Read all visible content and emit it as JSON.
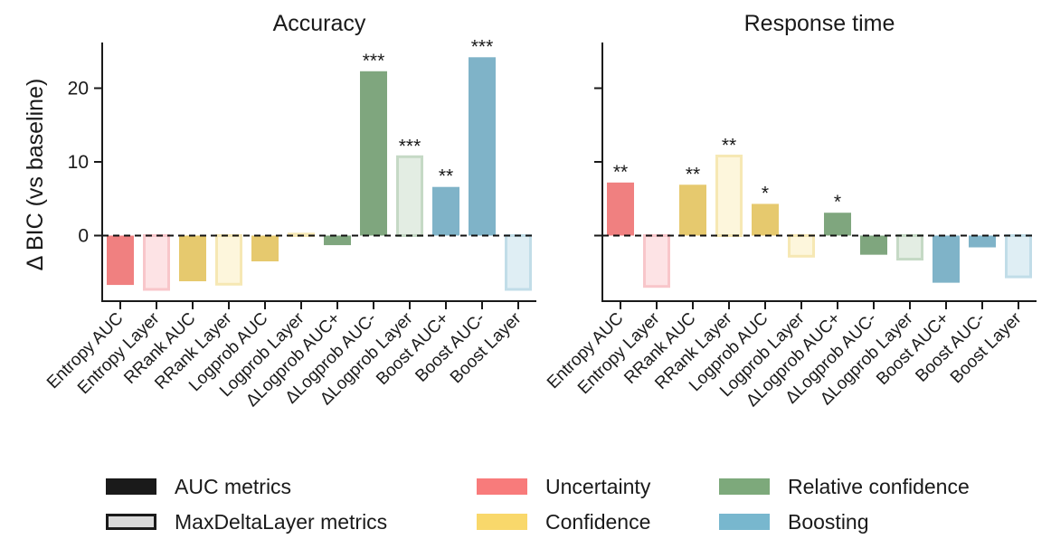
{
  "chart_data": [
    {
      "type": "bar",
      "title": "Accuracy",
      "ylabel": "Δ BIC (vs baseline)",
      "ylim": [
        -8.9,
        26.2
      ],
      "yticks": [
        0,
        10,
        20
      ],
      "categories": [
        "Entropy AUC",
        "Entropy Layer",
        "RRank AUC",
        "RRank Layer",
        "Logprob AUC",
        "Logprob Layer",
        "ΔLogprob AUC+",
        "ΔLogprob AUC-",
        "ΔLogprob Layer",
        "Boost AUC+",
        "Boost AUC-",
        "Boost Layer"
      ],
      "groups": [
        "uncertainty",
        "uncertainty",
        "confidence",
        "confidence",
        "confidence",
        "confidence",
        "relative",
        "relative",
        "relative",
        "boosting",
        "boosting",
        "boosting"
      ],
      "styles": [
        "auc",
        "layer",
        "auc",
        "layer",
        "auc",
        "layer",
        "auc",
        "auc",
        "layer",
        "auc",
        "auc",
        "layer"
      ],
      "values": [
        -6.7,
        -7.3,
        -6.2,
        -6.6,
        -3.5,
        0.2,
        -1.3,
        22.3,
        10.7,
        6.6,
        24.2,
        -7.3
      ],
      "significance": [
        "",
        "",
        "",
        "",
        "",
        "",
        "",
        "***",
        "***",
        "**",
        "***",
        ""
      ]
    },
    {
      "type": "bar",
      "title": "Response time",
      "ylim": [
        -8.9,
        26.2
      ],
      "yticks": [
        0,
        10,
        20
      ],
      "categories": [
        "Entropy AUC",
        "Entropy Layer",
        "RRank AUC",
        "RRank Layer",
        "Logprob AUC",
        "Logprob Layer",
        "ΔLogprob AUC+",
        "ΔLogprob AUC-",
        "ΔLogprob Layer",
        "Boost AUC+",
        "Boost AUC-",
        "Boost Layer"
      ],
      "groups": [
        "uncertainty",
        "uncertainty",
        "confidence",
        "confidence",
        "confidence",
        "confidence",
        "relative",
        "relative",
        "relative",
        "boosting",
        "boosting",
        "boosting"
      ],
      "styles": [
        "auc",
        "layer",
        "auc",
        "layer",
        "auc",
        "layer",
        "auc",
        "auc",
        "layer",
        "auc",
        "auc",
        "layer"
      ],
      "values": [
        7.2,
        -6.9,
        6.9,
        10.8,
        4.3,
        -2.8,
        3.1,
        -2.6,
        -3.2,
        -6.4,
        -1.6,
        -5.6
      ],
      "significance": [
        "**",
        "",
        "**",
        "**",
        "*",
        "",
        "*",
        "",
        "",
        "",
        "",
        ""
      ]
    }
  ],
  "colors": {
    "uncertainty": "#f08080",
    "confidence": "#e6c96e",
    "relative": "#7fa67e",
    "boosting": "#7fb3c8"
  },
  "layer_fill": {
    "uncertainty": "#fde3e5",
    "confidence": "#fdf6dc",
    "relative": "#e3ede3",
    "boosting": "#dfeef4"
  },
  "layer_stroke": {
    "uncertainty": "#f8c6ca",
    "confidence": "#f6e8b4",
    "relative": "#c5d9c5",
    "boosting": "#c1dde8"
  },
  "tick_colors": {
    "uncertainty": "#f07070",
    "confidence": "#f2cf5f",
    "relative": "#7fa67e",
    "boosting": "#7ab5cc"
  },
  "legend": {
    "style_items": [
      {
        "label": "AUC metrics",
        "kind": "auc"
      },
      {
        "label": "MaxDeltaLayer metrics",
        "kind": "layer"
      }
    ],
    "group_items": [
      {
        "label": "Uncertainty",
        "group": "uncertainty",
        "color": "#f87b7b"
      },
      {
        "label": "Confidence",
        "group": "confidence",
        "color": "#f9d86b"
      },
      {
        "label": "Relative confidence",
        "group": "relative",
        "color": "#7da97b"
      },
      {
        "label": "Boosting",
        "group": "boosting",
        "color": "#78b7ce"
      }
    ]
  }
}
